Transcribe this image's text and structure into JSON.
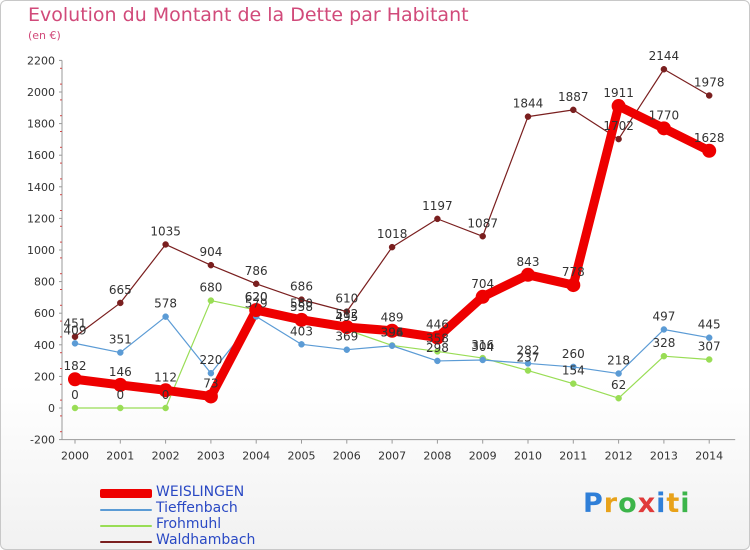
{
  "chart_data": {
    "type": "line",
    "title": "Evolution du Montant de la Dette par Habitant",
    "unit_label": "(en €)",
    "x": [
      "2000",
      "2001",
      "2002",
      "2003",
      "2004",
      "2005",
      "2006",
      "2007",
      "2008",
      "2009",
      "2010",
      "2011",
      "2012",
      "2013",
      "2014"
    ],
    "yticks": [
      2200,
      2000,
      1800,
      1600,
      1400,
      1200,
      1000,
      800,
      600,
      400,
      200,
      0,
      -200
    ],
    "ylim": [
      -200,
      2200
    ],
    "grid": false,
    "legend_position": "bottom-left",
    "series": [
      {
        "name": "WEISLINGEN",
        "color": "#ee0000",
        "values": [
          182,
          146,
          112,
          73,
          620,
          558,
          512,
          489,
          446,
          704,
          843,
          778,
          1911,
          1770,
          1628
        ]
      },
      {
        "name": "Tieffenbach",
        "color": "#5b9bd5",
        "values": [
          409,
          351,
          578,
          220,
          579,
          403,
          369,
          394,
          298,
          304,
          282,
          260,
          218,
          497,
          445
        ]
      },
      {
        "name": "Frohmuhl",
        "color": "#99dd55",
        "values": [
          0,
          0,
          0,
          680,
          620,
          580,
          495,
          396,
          358,
          316,
          237,
          154,
          62,
          328,
          307
        ]
      },
      {
        "name": "Waldhambach",
        "color": "#7a1f1f",
        "values": [
          451,
          665,
          1035,
          904,
          786,
          686,
          610,
          1018,
          1197,
          1087,
          1844,
          1887,
          1702,
          2144,
          1978
        ]
      }
    ]
  },
  "logo": {
    "p": "P",
    "r": "r",
    "o": "o",
    "x": "x",
    "i1": "i",
    "t": "t",
    "i2": "i"
  }
}
